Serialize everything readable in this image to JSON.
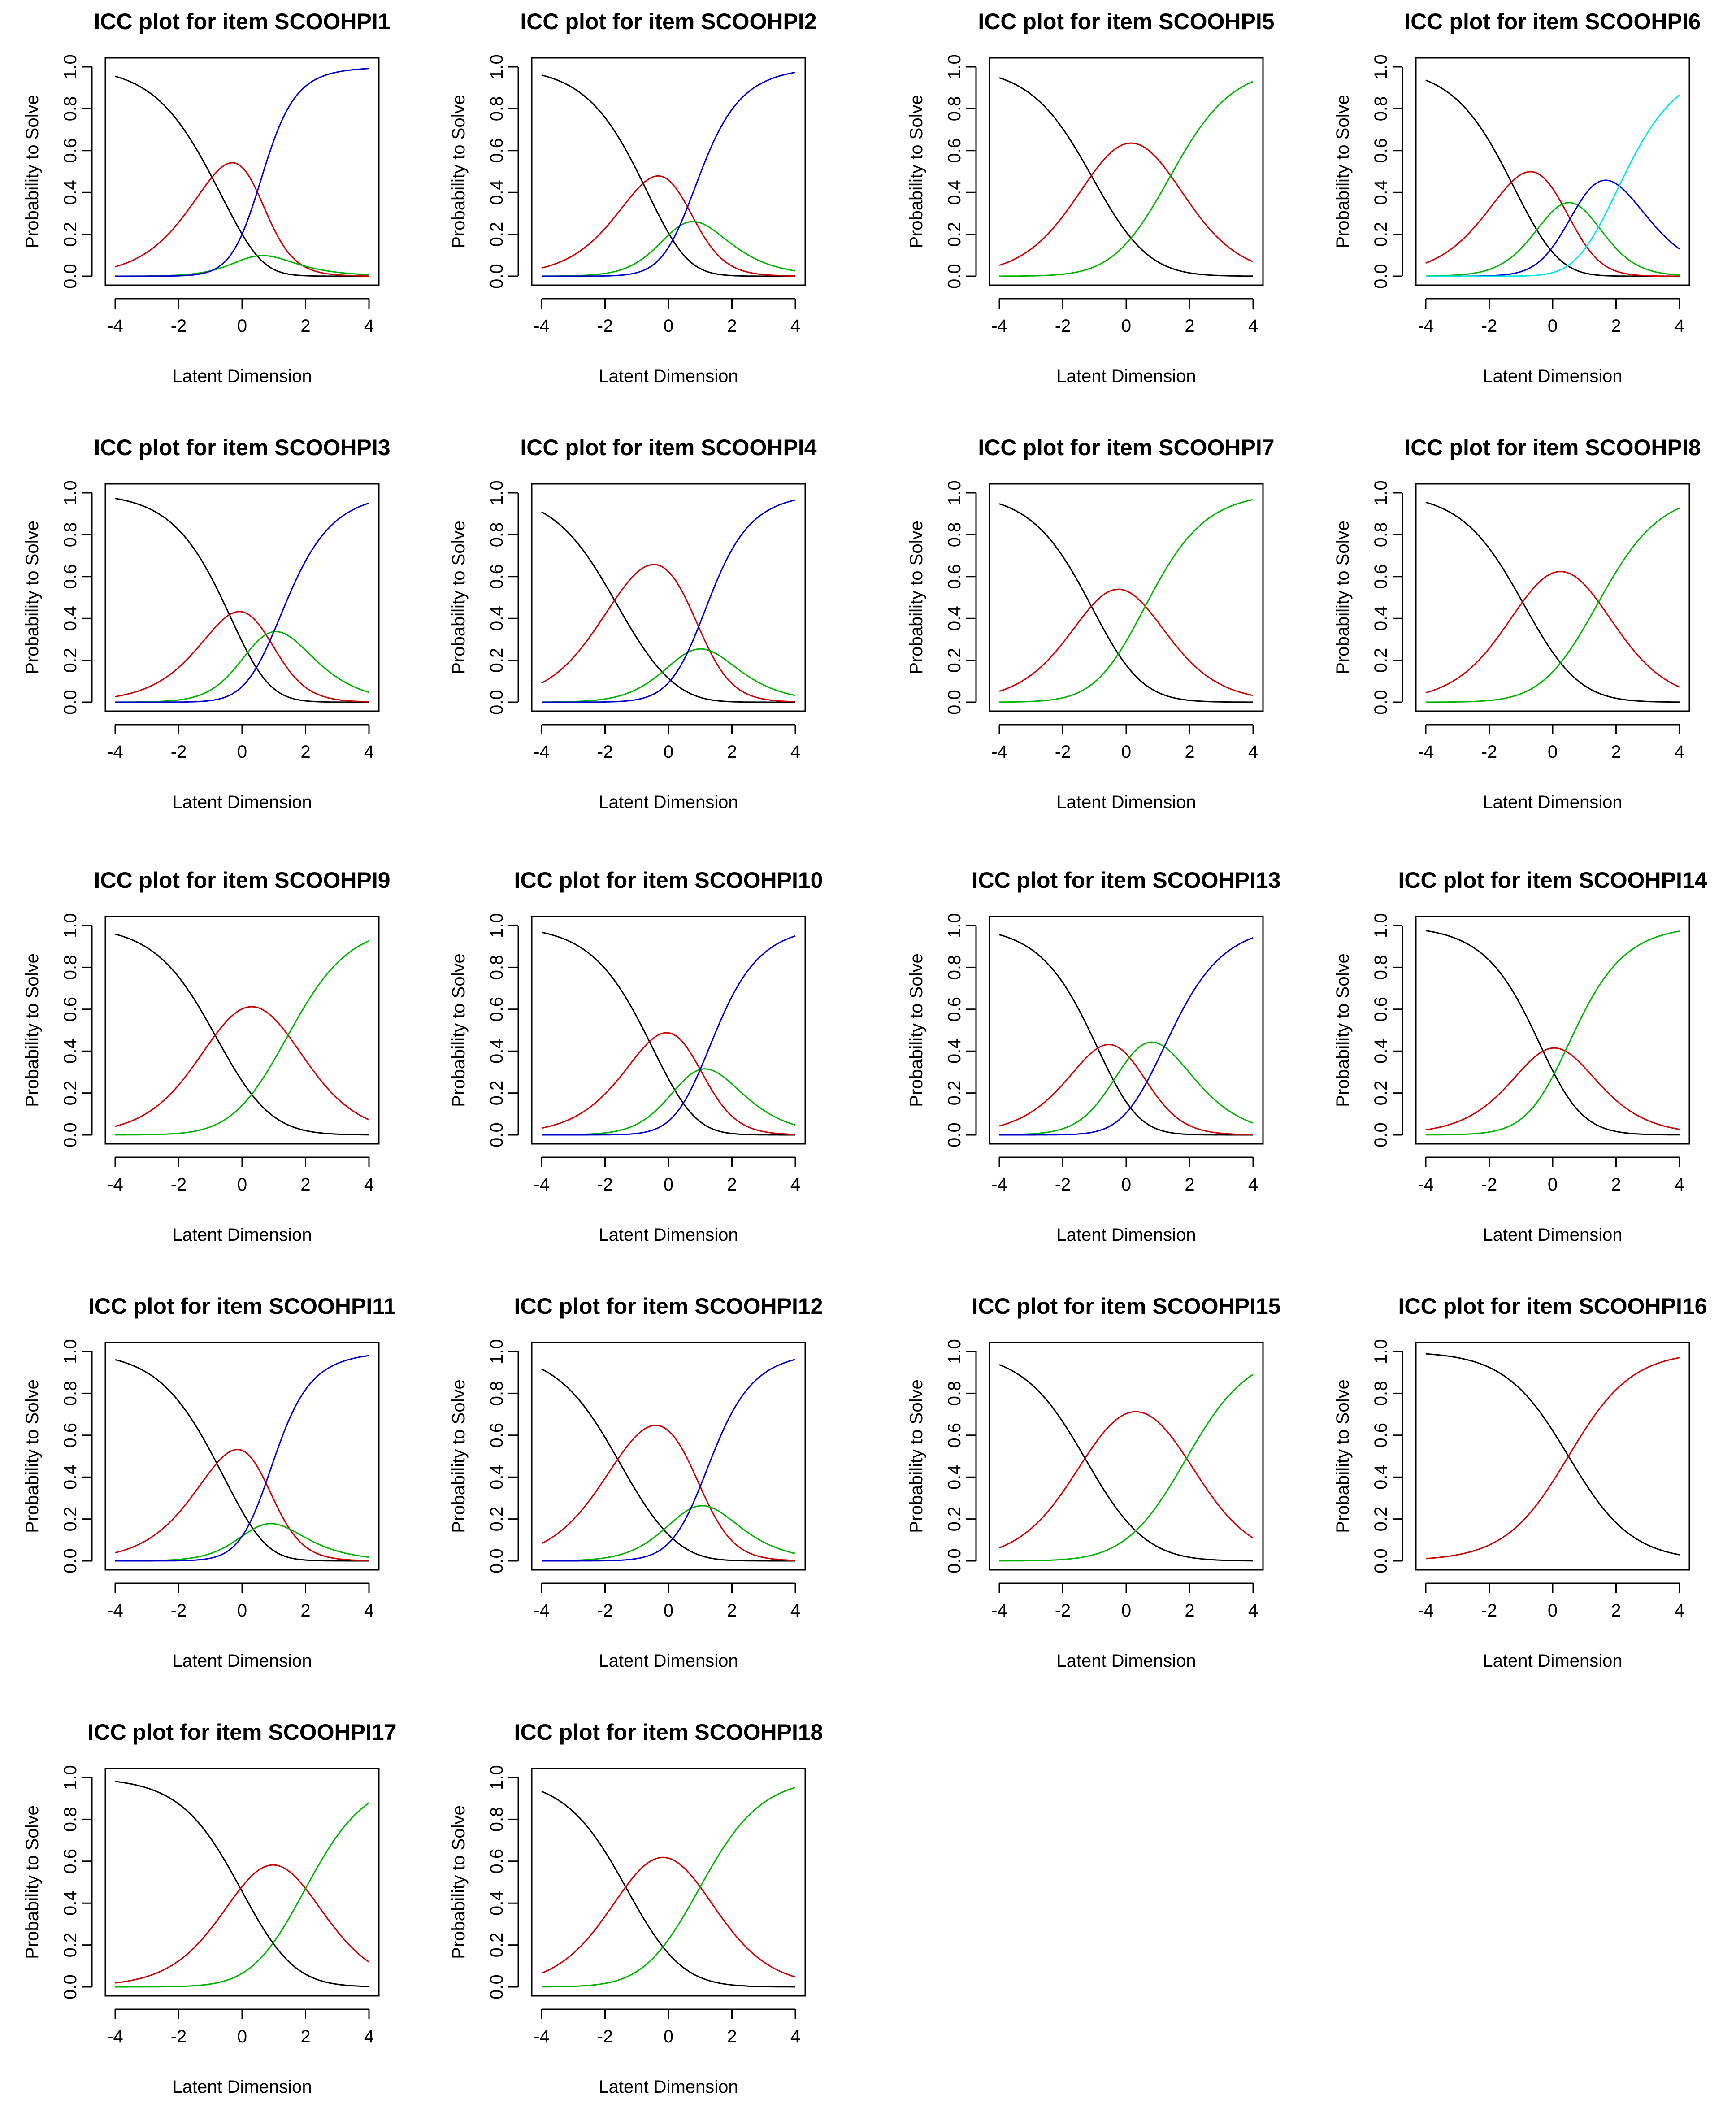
{
  "figure": {
    "chart_count": 18,
    "line_colors": [
      "#000000",
      "#cc0000",
      "#00b300",
      "#0000cc",
      "#00e5ee"
    ]
  },
  "chart_data": [
    {
      "type": "line",
      "title": "ICC plot for item SCOOHPI1",
      "xlabel": "Latent Dimension",
      "ylabel": "Probability to Solve",
      "xlim": [
        -4,
        4
      ],
      "ylim": [
        0,
        1
      ],
      "xticks": [
        "-4",
        "-2",
        "0",
        "2",
        "4"
      ],
      "yticks": [
        "0.0",
        "0.2",
        "0.4",
        "0.6",
        "0.8",
        "1.0"
      ],
      "model": {
        "a": 1,
        "d": [
          -0.95,
          1.9,
          -0.95
        ]
      }
    },
    {
      "type": "line",
      "title": "ICC plot for item SCOOHPI2",
      "xlabel": "Latent Dimension",
      "ylabel": "Probability to Solve",
      "xlim": [
        -4,
        4
      ],
      "ylim": [
        0,
        1
      ],
      "xticks": [
        "-4",
        "-2",
        "0",
        "2",
        "4"
      ],
      "yticks": [
        "0.0",
        "0.2",
        "0.4",
        "0.6",
        "0.8",
        "1.0"
      ],
      "model": {
        "a": 1,
        "d": [
          -0.8,
          0.85,
          0.35
        ]
      }
    },
    {
      "type": "line",
      "title": "ICC plot for item SCOOHPI5",
      "xlabel": "Latent Dimension",
      "ylabel": "Probability to Solve",
      "xlim": [
        -4,
        4
      ],
      "ylim": [
        0,
        1
      ],
      "xticks": [
        "-4",
        "-2",
        "0",
        "2",
        "4"
      ],
      "yticks": [
        "0.0",
        "0.2",
        "0.4",
        "0.6",
        "0.8",
        "1.0"
      ],
      "model": {
        "a": 1,
        "d": [
          -1.1,
          1.4
        ]
      }
    },
    {
      "type": "line",
      "title": "ICC plot for item SCOOHPI6",
      "xlabel": "Latent Dimension",
      "ylabel": "Probability to Solve",
      "xlim": [
        -4,
        4
      ],
      "ylim": [
        0,
        1
      ],
      "xticks": [
        "-4",
        "-2",
        "0",
        "2",
        "4"
      ],
      "yticks": [
        "0.0",
        "0.2",
        "0.4",
        "0.6",
        "0.8",
        "1.0"
      ],
      "model": {
        "a": 1,
        "d": [
          -1.3,
          0.3,
          0.8,
          2.1
        ]
      }
    },
    {
      "type": "line",
      "title": "ICC plot for item SCOOHPI3",
      "xlabel": "Latent Dimension",
      "ylabel": "Probability to Solve",
      "xlim": [
        -4,
        4
      ],
      "ylim": [
        0,
        1
      ],
      "xticks": [
        "-4",
        "-2",
        "0",
        "2",
        "4"
      ],
      "yticks": [
        "0.0",
        "0.2",
        "0.4",
        "0.6",
        "0.8",
        "1.0"
      ],
      "model": {
        "a": 1,
        "d": [
          -0.4,
          0.75,
          1.0
        ]
      }
    },
    {
      "type": "line",
      "title": "ICC plot for item SCOOHPI4",
      "xlabel": "Latent Dimension",
      "ylabel": "Probability to Solve",
      "xlim": [
        -4,
        4
      ],
      "ylim": [
        0,
        1
      ],
      "xticks": [
        "-4",
        "-2",
        "0",
        "2",
        "4"
      ],
      "yticks": [
        "0.0",
        "0.2",
        "0.4",
        "0.6",
        "0.8",
        "1.0"
      ],
      "model": {
        "a": 1,
        "d": [
          -1.7,
          1.3,
          0.6
        ]
      }
    },
    {
      "type": "line",
      "title": "ICC plot for item SCOOHPI7",
      "xlabel": "Latent Dimension",
      "ylabel": "Probability to Solve",
      "xlim": [
        -4,
        4
      ],
      "ylim": [
        0,
        1
      ],
      "xticks": [
        "-4",
        "-2",
        "0",
        "2",
        "4"
      ],
      "yticks": [
        "0.0",
        "0.2",
        "0.4",
        "0.6",
        "0.8",
        "1.0"
      ],
      "model": {
        "a": 1,
        "d": [
          -1.1,
          0.6
        ]
      }
    },
    {
      "type": "line",
      "title": "ICC plot for item SCOOHPI8",
      "xlabel": "Latent Dimension",
      "ylabel": "Probability to Solve",
      "xlim": [
        -4,
        4
      ],
      "ylim": [
        0,
        1
      ],
      "xticks": [
        "-4",
        "-2",
        "0",
        "2",
        "4"
      ],
      "yticks": [
        "0.0",
        "0.2",
        "0.4",
        "0.6",
        "0.8",
        "1.0"
      ],
      "model": {
        "a": 1,
        "d": [
          -0.95,
          1.45
        ]
      }
    },
    {
      "type": "line",
      "title": "ICC plot for item SCOOHPI9",
      "xlabel": "Latent Dimension",
      "ylabel": "Probability to Solve",
      "xlim": [
        -4,
        4
      ],
      "ylim": [
        0,
        1
      ],
      "xticks": [
        "-4",
        "-2",
        "0",
        "2",
        "4"
      ],
      "yticks": [
        "0.0",
        "0.2",
        "0.4",
        "0.6",
        "0.8",
        "1.0"
      ],
      "model": {
        "a": 1,
        "d": [
          -0.85,
          1.45
        ]
      }
    },
    {
      "type": "line",
      "title": "ICC plot for item SCOOHPI10",
      "xlabel": "Latent Dimension",
      "ylabel": "Probability to Solve",
      "xlim": [
        -4,
        4
      ],
      "ylim": [
        0,
        1
      ],
      "xticks": [
        "-4",
        "-2",
        "0",
        "2",
        "4"
      ],
      "yticks": [
        "0.0",
        "0.2",
        "0.4",
        "0.6",
        "0.8",
        "1.0"
      ],
      "model": {
        "a": 1,
        "d": [
          -0.6,
          1.0,
          1.0
        ]
      }
    },
    {
      "type": "line",
      "title": "ICC plot for item SCOOHPI13",
      "xlabel": "Latent Dimension",
      "ylabel": "Probability to Solve",
      "xlim": [
        -4,
        4
      ],
      "ylim": [
        0,
        1
      ],
      "xticks": [
        "-4",
        "-2",
        "0",
        "2",
        "4"
      ],
      "yticks": [
        "0.0",
        "0.2",
        "0.4",
        "0.6",
        "0.8",
        "1.0"
      ],
      "model": {
        "a": 1,
        "d": [
          -0.9,
          0.1,
          1.2
        ]
      }
    },
    {
      "type": "line",
      "title": "ICC plot for item SCOOHPI14",
      "xlabel": "Latent Dimension",
      "ylabel": "Probability to Solve",
      "xlim": [
        -4,
        4
      ],
      "ylim": [
        0,
        1
      ],
      "xticks": [
        "-4",
        "-2",
        "0",
        "2",
        "4"
      ],
      "yticks": [
        "0.0",
        "0.2",
        "0.4",
        "0.6",
        "0.8",
        "1.0"
      ],
      "model": {
        "a": 1,
        "d": [
          -0.3,
          0.4
        ]
      }
    },
    {
      "type": "line",
      "title": "ICC plot for item SCOOHPI11",
      "xlabel": "Latent Dimension",
      "ylabel": "Probability to Solve",
      "xlim": [
        -4,
        4
      ],
      "ylim": [
        0,
        1
      ],
      "xticks": [
        "-4",
        "-2",
        "0",
        "2",
        "4"
      ],
      "yticks": [
        "0.0",
        "0.2",
        "0.4",
        "0.6",
        "0.8",
        "1.0"
      ],
      "model": {
        "a": 1,
        "d": [
          -0.8,
          1.5,
          0.0
        ]
      }
    },
    {
      "type": "line",
      "title": "ICC plot for item SCOOHPI12",
      "xlabel": "Latent Dimension",
      "ylabel": "Probability to Solve",
      "xlim": [
        -4,
        4
      ],
      "ylim": [
        0,
        1
      ],
      "xticks": [
        "-4",
        "-2",
        "0",
        "2",
        "4"
      ],
      "yticks": [
        "0.0",
        "0.2",
        "0.4",
        "0.6",
        "0.8",
        "1.0"
      ],
      "model": {
        "a": 1,
        "d": [
          -1.6,
          1.3,
          0.7
        ]
      }
    },
    {
      "type": "line",
      "title": "ICC plot for item SCOOHPI15",
      "xlabel": "Latent Dimension",
      "ylabel": "Probability to Solve",
      "xlim": [
        -4,
        4
      ],
      "ylim": [
        0,
        1
      ],
      "xticks": [
        "-4",
        "-2",
        "0",
        "2",
        "4"
      ],
      "yticks": [
        "0.0",
        "0.2",
        "0.4",
        "0.6",
        "0.8",
        "1.0"
      ],
      "model": {
        "a": 1,
        "d": [
          -1.3,
          1.9
        ]
      }
    },
    {
      "type": "line",
      "title": "ICC plot for item SCOOHPI16",
      "xlabel": "Latent Dimension",
      "ylabel": "Probability to Solve",
      "xlim": [
        -4,
        4
      ],
      "ylim": [
        0,
        1
      ],
      "xticks": [
        "-4",
        "-2",
        "0",
        "2",
        "4"
      ],
      "yticks": [
        "0.0",
        "0.2",
        "0.4",
        "0.6",
        "0.8",
        "1.0"
      ],
      "model": {
        "a": 1,
        "d": [
          0.5
        ]
      }
    },
    {
      "type": "line",
      "title": "ICC plot for item SCOOHPI17",
      "xlabel": "Latent Dimension",
      "ylabel": "Probability to Solve",
      "xlim": [
        -4,
        4
      ],
      "ylim": [
        0,
        1
      ],
      "xticks": [
        "-4",
        "-2",
        "0",
        "2",
        "4"
      ],
      "yticks": [
        "0.0",
        "0.2",
        "0.4",
        "0.6",
        "0.8",
        "1.0"
      ],
      "model": {
        "a": 1,
        "d": [
          -0.05,
          2.0
        ]
      }
    },
    {
      "type": "line",
      "title": "ICC plot for item SCOOHPI18",
      "xlabel": "Latent Dimension",
      "ylabel": "Probability to Solve",
      "xlim": [
        -4,
        4
      ],
      "ylim": [
        0,
        1
      ],
      "xticks": [
        "-4",
        "-2",
        "0",
        "2",
        "4"
      ],
      "yticks": [
        "0.0",
        "0.2",
        "0.4",
        "0.6",
        "0.8",
        "1.0"
      ],
      "model": {
        "a": 1,
        "d": [
          -1.35,
          1.0
        ]
      }
    }
  ]
}
